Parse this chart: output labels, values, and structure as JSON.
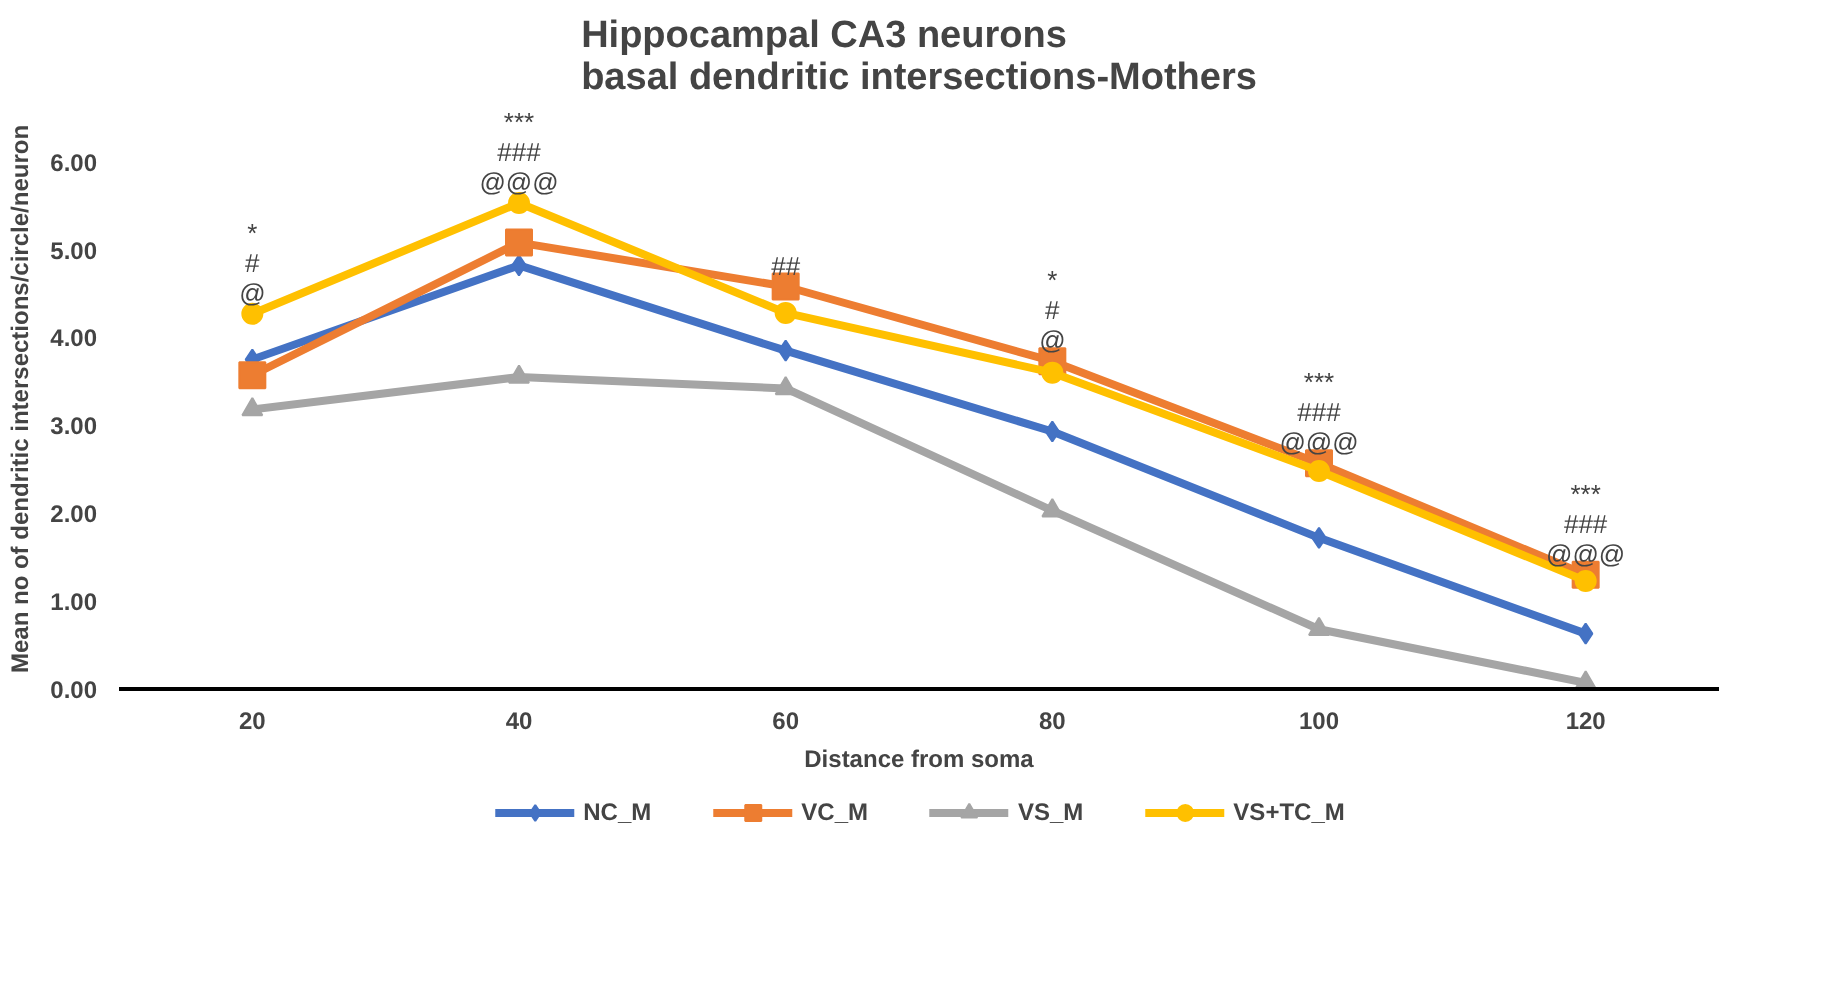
{
  "chart_data": {
    "type": "line",
    "title": "Hippocampal CA3 neurons\nbasal dendritic intersections-Mothers",
    "xlabel": "Distance from soma",
    "ylabel": "Mean no of dendritic intersections/circle/neuron",
    "categories": [
      "20",
      "40",
      "60",
      "80",
      "100",
      "120"
    ],
    "series": [
      {
        "name": "NC_M",
        "color": "#4472c4",
        "marker": "diamond",
        "values": [
          3.75,
          4.82,
          3.85,
          2.93,
          1.72,
          0.63
        ]
      },
      {
        "name": "VC_M",
        "color": "#ed7d31",
        "marker": "square",
        "values": [
          3.57,
          5.08,
          4.58,
          3.73,
          2.57,
          1.3
        ]
      },
      {
        "name": "VS_M",
        "color": "#a5a5a5",
        "marker": "triangle",
        "values": [
          3.18,
          3.55,
          3.42,
          2.03,
          0.68,
          0.07
        ]
      },
      {
        "name": "VS+TC_M",
        "color": "#ffc000",
        "marker": "circle",
        "values": [
          4.27,
          5.53,
          4.28,
          3.6,
          2.48,
          1.23
        ]
      }
    ],
    "ylim": [
      0,
      6
    ],
    "yticks": [
      {
        "value": 0,
        "label": "0.00"
      },
      {
        "value": 1,
        "label": "1.00"
      },
      {
        "value": 2,
        "label": "2.00"
      },
      {
        "value": 3,
        "label": "3.00"
      },
      {
        "value": 4,
        "label": "4.00"
      },
      {
        "value": 5,
        "label": "5.00"
      },
      {
        "value": 6,
        "label": "6.00"
      }
    ],
    "grid": false,
    "legend": "bottom",
    "annotations": [
      {
        "text": "*\n#\n@",
        "x": "20",
        "y": 4.27
      },
      {
        "text": "***\n###\n@@@",
        "x": "40",
        "y": 5.53
      },
      {
        "text": "##",
        "x": "60",
        "y": 4.58
      },
      {
        "text": "*\n#\n@",
        "x": "80",
        "y": 3.73
      },
      {
        "text": "***\n###\n@@@",
        "x": "100",
        "y": 2.57
      },
      {
        "text": "***\n###\n@@@",
        "x": "120",
        "y": 1.3
      }
    ]
  }
}
